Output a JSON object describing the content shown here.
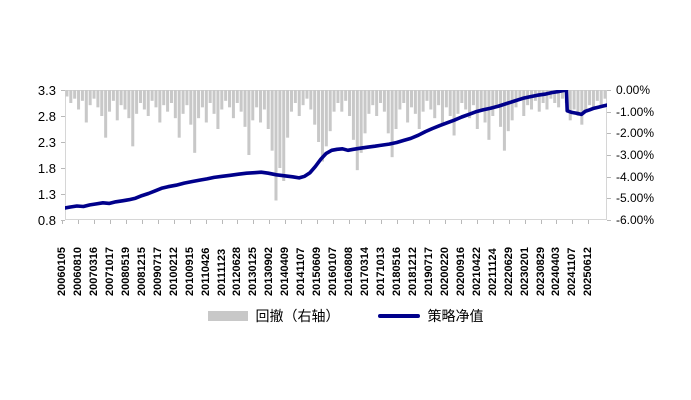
{
  "chart_data": {
    "type": "combo",
    "title": "",
    "x_axis": {
      "labels": [
        "20060105",
        "20060810",
        "20070316",
        "20071017",
        "20080519",
        "20081215",
        "20090717",
        "20100212",
        "20100915",
        "20110426",
        "20111123",
        "20120628",
        "20130125",
        "20130902",
        "20140409",
        "20141107",
        "20150609",
        "20160107",
        "20160808",
        "20170314",
        "20171013",
        "20180516",
        "20181212",
        "20190717",
        "20200220",
        "20200916",
        "20210422",
        "20211124",
        "20220629",
        "20230201",
        "20230829",
        "20240403",
        "20241107",
        "20250612"
      ]
    },
    "left_axis": {
      "min": 0.8,
      "max": 3.3,
      "ticks": [
        "3.3",
        "2.8",
        "2.3",
        "1.8",
        "1.3",
        "0.8"
      ]
    },
    "right_axis": {
      "min": -6,
      "max": 0,
      "ticks": [
        "0.00%",
        "-1.00%",
        "-2.00%",
        "-3.00%",
        "-4.00%",
        "-5.00%",
        "-6.00%"
      ]
    },
    "series": [
      {
        "name": "回撤（右轴）",
        "type": "bars",
        "axis": "right",
        "color": "#c8c8c8",
        "values": [
          -0.3,
          -0.6,
          -0.4,
          -0.9,
          -0.5,
          -1.5,
          -0.7,
          -0.4,
          -0.8,
          -1.2,
          -2.2,
          -1.0,
          -0.5,
          -1.4,
          -0.7,
          -0.9,
          -1.3,
          -2.6,
          -1.1,
          -0.6,
          -0.9,
          -1.2,
          -0.5,
          -0.8,
          -1.5,
          -0.7,
          -1.0,
          -0.6,
          -1.3,
          -2.2,
          -1.1,
          -0.7,
          -1.6,
          -2.9,
          -1.3,
          -0.8,
          -1.5,
          -0.6,
          -1.1,
          -1.8,
          -0.9,
          -0.5,
          -0.8,
          -1.3,
          -0.6,
          -1.0,
          -1.7,
          -3.0,
          -1.4,
          -0.8,
          -1.5,
          -0.9,
          -1.8,
          -2.8,
          -5.1,
          -3.6,
          -4.2,
          -2.2,
          -1.0,
          -0.6,
          -1.2,
          -0.7,
          -0.4,
          -0.9,
          -1.6,
          -2.4,
          -3.3,
          -2.6,
          -1.9,
          -1.0,
          -0.6,
          -1.0,
          -0.5,
          -1.2,
          -2.3,
          -3.7,
          -2.9,
          -2.0,
          -1.1,
          -0.7,
          -1.2,
          -0.6,
          -1.0,
          -2.0,
          -3.1,
          -1.8,
          -0.9,
          -0.6,
          -1.5,
          -0.8,
          -1.1,
          -1.8,
          -1.0,
          -0.5,
          -0.9,
          -1.3,
          -0.7,
          -1.6,
          -0.8,
          -1.2,
          -2.1,
          -1.1,
          -0.6,
          -0.9,
          -1.3,
          -0.7,
          -1.8,
          -1.0,
          -1.5,
          -2.3,
          -1.2,
          -0.8,
          -1.7,
          -2.8,
          -1.9,
          -1.4,
          -0.8,
          -0.5,
          -1.2,
          -0.7,
          -0.9,
          -0.5,
          -1.0,
          -0.6,
          -0.9,
          -0.4,
          -0.6,
          -0.8,
          -0.4,
          -0.6,
          -1.4,
          -0.9,
          -1.2,
          -1.6,
          -1.0,
          -0.7,
          -0.9,
          -0.5,
          -0.7,
          -0.4
        ]
      },
      {
        "name": "策略净值",
        "type": "line",
        "axis": "left",
        "color": "#00008b",
        "f": [
          0.0,
          0.01,
          0.022,
          0.034,
          0.046,
          0.058,
          0.07,
          0.082,
          0.094,
          0.106,
          0.118,
          0.13,
          0.142,
          0.154,
          0.166,
          0.178,
          0.19,
          0.205,
          0.22,
          0.235,
          0.25,
          0.262,
          0.275,
          0.29,
          0.305,
          0.32,
          0.335,
          0.35,
          0.362,
          0.375,
          0.39,
          0.405,
          0.42,
          0.432,
          0.442,
          0.452,
          0.462,
          0.472,
          0.482,
          0.492,
          0.502,
          0.512,
          0.522,
          0.532,
          0.545,
          0.558,
          0.572,
          0.585,
          0.598,
          0.612,
          0.625,
          0.638,
          0.652,
          0.665,
          0.678,
          0.692,
          0.705,
          0.718,
          0.732,
          0.745,
          0.758,
          0.772,
          0.785,
          0.8,
          0.815,
          0.83,
          0.845,
          0.858,
          0.872,
          0.885,
          0.898,
          0.91,
          0.92,
          0.925,
          0.9265,
          0.935,
          0.945,
          0.953,
          0.96,
          0.968,
          0.976,
          0.984,
          0.992,
          1.0
        ],
        "v": [
          1.03,
          1.05,
          1.07,
          1.06,
          1.09,
          1.11,
          1.13,
          1.12,
          1.15,
          1.17,
          1.19,
          1.22,
          1.27,
          1.31,
          1.36,
          1.41,
          1.44,
          1.47,
          1.51,
          1.54,
          1.57,
          1.59,
          1.62,
          1.64,
          1.66,
          1.68,
          1.7,
          1.71,
          1.72,
          1.7,
          1.67,
          1.65,
          1.63,
          1.61,
          1.64,
          1.71,
          1.83,
          1.97,
          2.08,
          2.14,
          2.16,
          2.17,
          2.14,
          2.16,
          2.18,
          2.2,
          2.22,
          2.24,
          2.26,
          2.29,
          2.33,
          2.37,
          2.43,
          2.5,
          2.56,
          2.62,
          2.67,
          2.72,
          2.78,
          2.83,
          2.88,
          2.92,
          2.95,
          2.99,
          3.04,
          3.09,
          3.14,
          3.17,
          3.2,
          3.22,
          3.25,
          3.27,
          3.29,
          3.3,
          2.9,
          2.87,
          2.85,
          2.83,
          2.89,
          2.92,
          2.95,
          2.97,
          2.99,
          3.01
        ]
      }
    ],
    "legend": [
      {
        "label": "回撤（右轴）",
        "swatch": "bar",
        "color": "#c8c8c8"
      },
      {
        "label": "策略净值",
        "swatch": "line",
        "color": "#00008b"
      }
    ],
    "layout": {
      "grid": false,
      "legend_position": "bottom"
    }
  },
  "colors": {
    "drawdown": "#c8c8c8",
    "nav_line": "#00008b",
    "axis_line": "#c9c9c9",
    "text": "#000000"
  }
}
